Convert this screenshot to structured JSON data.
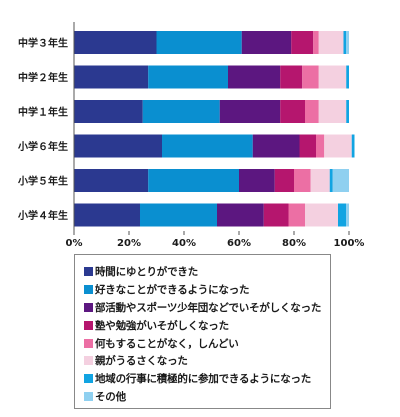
{
  "chart_data": {
    "type": "bar",
    "orientation": "horizontal",
    "stacked": true,
    "categories": [
      "中学３年生",
      "中学２年生",
      "中学１年生",
      "小学６年生",
      "小学５年生",
      "小学４年生"
    ],
    "x_ticks": [
      "0%",
      "20%",
      "40%",
      "60%",
      "80%",
      "100%"
    ],
    "xlim": [
      0,
      100
    ],
    "grid": false,
    "legend_position": "bottom",
    "series": [
      {
        "name": "時間にゆとりができた",
        "color": "#2b3990",
        "values": [
          30,
          27,
          25,
          32,
          27,
          24
        ]
      },
      {
        "name": "好きなことができるようになった",
        "color": "#0a8fd0",
        "values": [
          31,
          29,
          28,
          33,
          33,
          28
        ]
      },
      {
        "name": "部活動やスポーツ少年団などでいそがしくなった",
        "color": "#5c1780",
        "values": [
          18,
          19,
          22,
          17,
          13,
          17
        ]
      },
      {
        "name": "塾や勉強がいそがしくなった",
        "color": "#b5166e",
        "values": [
          8,
          8,
          9,
          6,
          7,
          9
        ]
      },
      {
        "name": "何もすることがなく，しんどい",
        "color": "#ec6fa4",
        "values": [
          2,
          6,
          5,
          3,
          6,
          6
        ]
      },
      {
        "name": "親がうるさくなった",
        "color": "#f4d0e0",
        "values": [
          9,
          10,
          10,
          10,
          7,
          12
        ]
      },
      {
        "name": "地域の行事に積極的に参加できるようになった",
        "color": "#11a4e2",
        "values": [
          1,
          1,
          1,
          1,
          1,
          3
        ]
      },
      {
        "name": "その他",
        "color": "#8fd0f0",
        "values": [
          1,
          0,
          0,
          0,
          6,
          1
        ]
      }
    ]
  }
}
